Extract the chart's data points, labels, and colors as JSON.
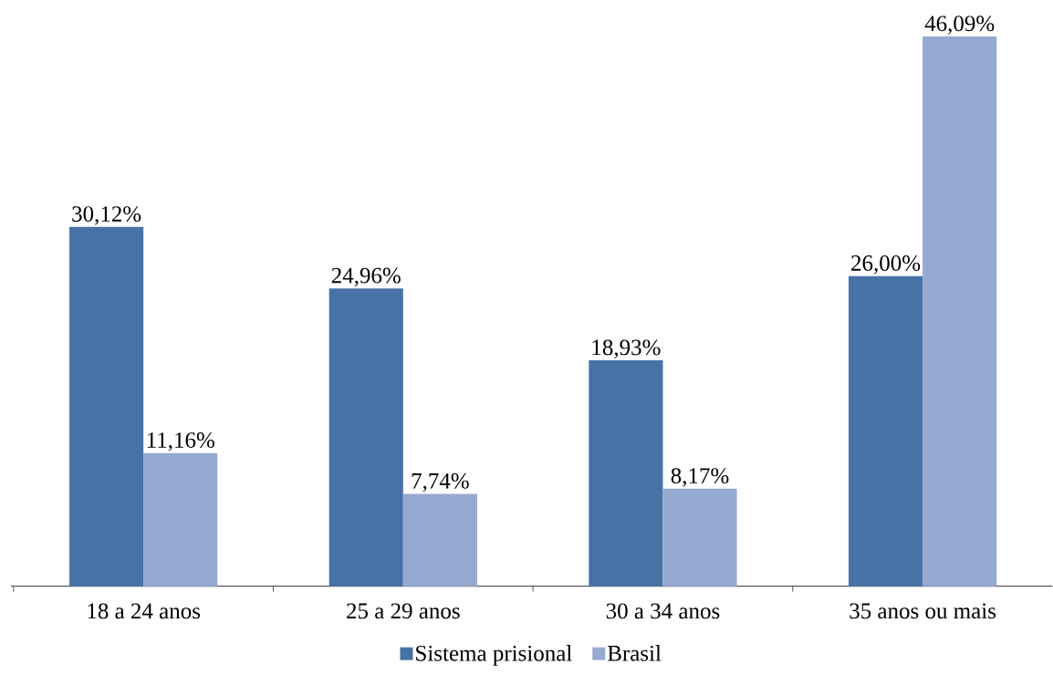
{
  "chart_data": {
    "type": "bar",
    "categories": [
      "18 a 24 anos",
      "25 a 29 anos",
      "30 a 34 anos",
      "35 anos ou mais"
    ],
    "series": [
      {
        "name": "Sistema prisional",
        "color": "#4672a6",
        "values": [
          30.12,
          24.96,
          18.93,
          26.0
        ],
        "value_labels": [
          "30,12%",
          "24,96%",
          "18,93%",
          "26,00%"
        ]
      },
      {
        "name": "Brasil",
        "color": "#95a9d1",
        "values": [
          11.16,
          7.74,
          8.17,
          46.09
        ],
        "value_labels": [
          "11,16%",
          "7,74%",
          "8,17%",
          "46,09%"
        ]
      }
    ],
    "legend": "bottom"
  }
}
